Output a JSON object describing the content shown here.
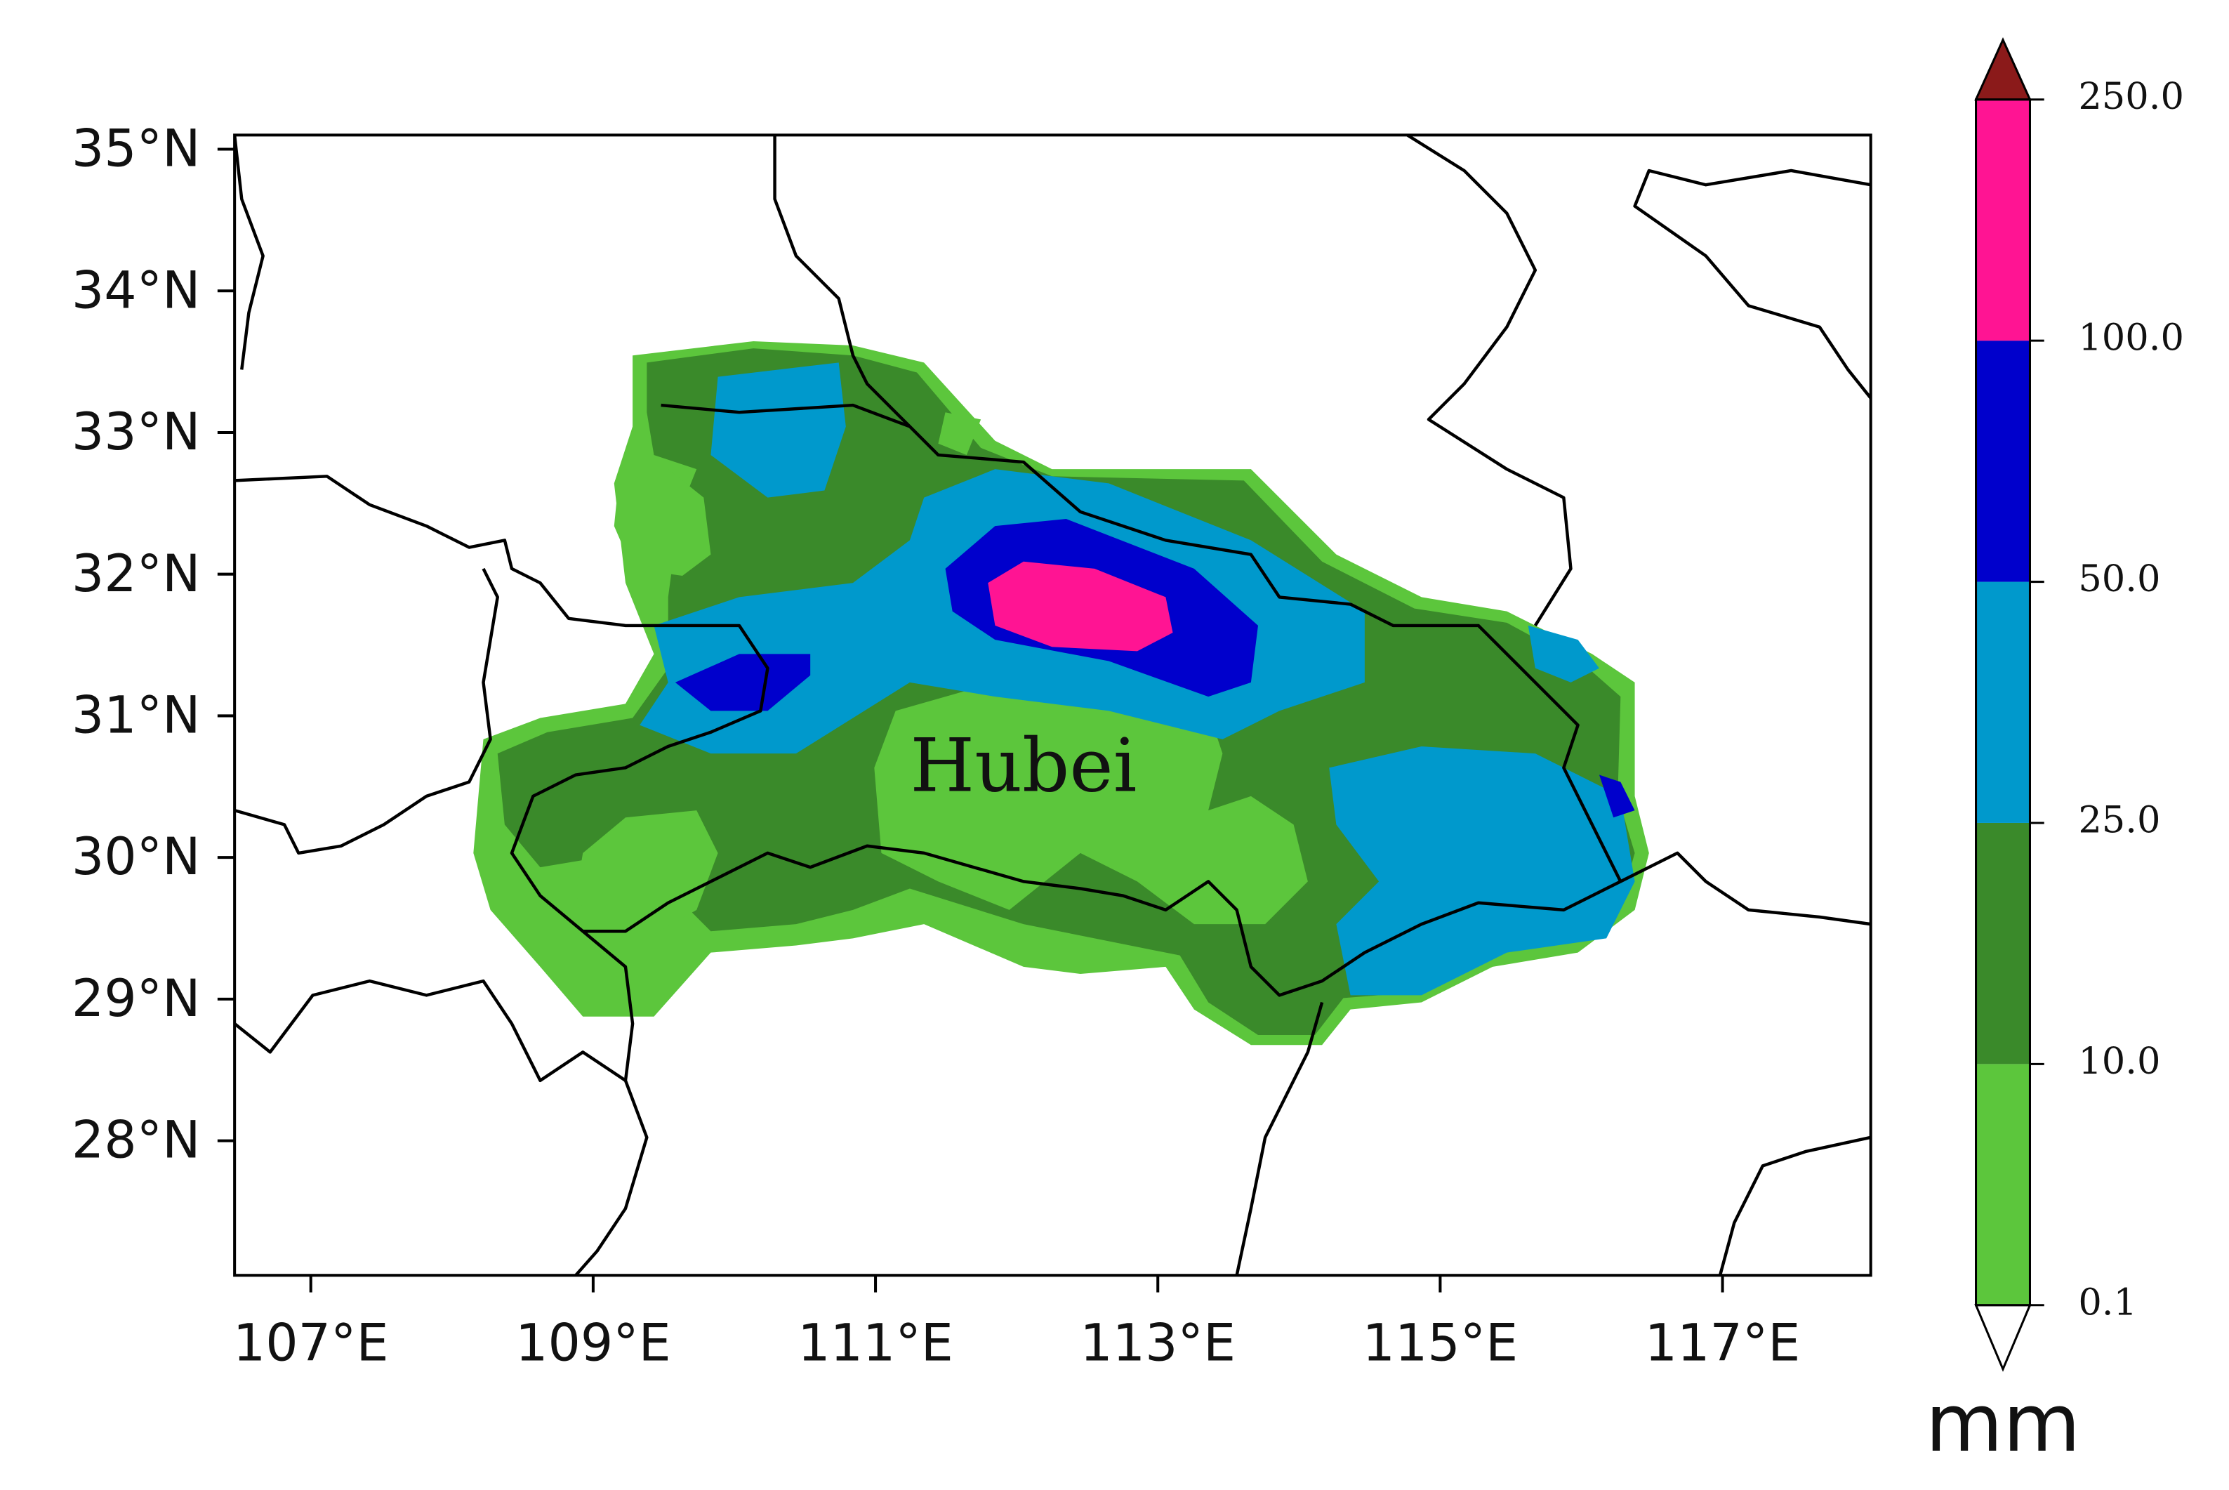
{
  "chart_data": {
    "type": "contour-map",
    "annotation": "Hubei",
    "xlim": [
      106.46,
      118.05
    ],
    "ylim": [
      27.05,
      35.1
    ],
    "xticks": [
      {
        "value": 107,
        "label": "107°E"
      },
      {
        "value": 109,
        "label": "109°E"
      },
      {
        "value": 111,
        "label": "111°E"
      },
      {
        "value": 113,
        "label": "113°E"
      },
      {
        "value": 115,
        "label": "115°E"
      },
      {
        "value": 117,
        "label": "117°E"
      }
    ],
    "yticks": [
      {
        "value": 28,
        "label": "28°N"
      },
      {
        "value": 29,
        "label": "29°N"
      },
      {
        "value": 30,
        "label": "30°N"
      },
      {
        "value": 31,
        "label": "31°N"
      },
      {
        "value": 32,
        "label": "32°N"
      },
      {
        "value": 33,
        "label": "33°N"
      },
      {
        "value": 34,
        "label": "34°N"
      },
      {
        "value": 35,
        "label": "35°N"
      }
    ],
    "colorbar": {
      "levels": [
        0.1,
        {
          "value": 10,
          "label": "10.0"
        },
        {
          "value": 25,
          "label": "25.0"
        },
        {
          "value": 50,
          "label": "50.0"
        },
        {
          "value": 100,
          "label": "100.0"
        },
        {
          "value": 250,
          "label": "250.0"
        }
      ],
      "colors": [
        "#5cc63c",
        "#3a8a2a",
        "#0099cc",
        "#0000cc",
        "#ff1493"
      ],
      "over_color": "#8b1a1a",
      "label": "mm"
    }
  }
}
